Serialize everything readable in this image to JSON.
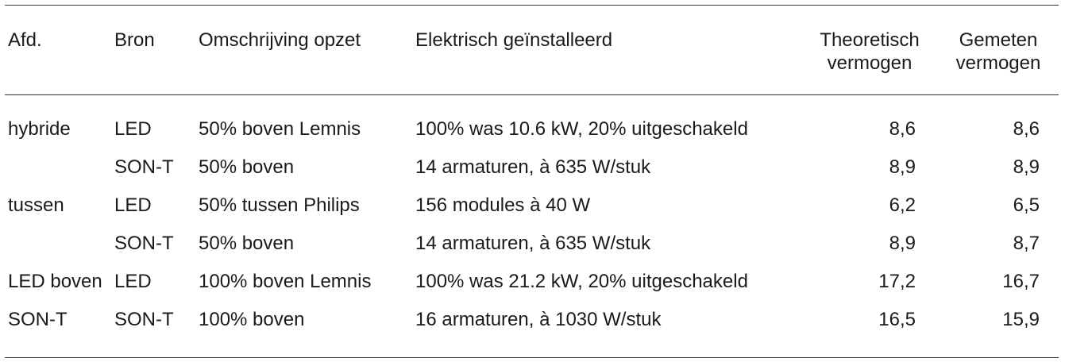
{
  "table": {
    "headers": [
      {
        "key": "afd",
        "label": "Afd."
      },
      {
        "key": "bron",
        "label": "Bron"
      },
      {
        "key": "omschrijving",
        "label": "Omschrijving opzet"
      },
      {
        "key": "elektrisch",
        "label": "Elektrisch geïnstalleerd"
      },
      {
        "key": "theoretisch",
        "label_line1": "Theoretisch",
        "label_line2": "vermogen"
      },
      {
        "key": "gemeten",
        "label_line1": "Gemeten",
        "label_line2": "vermogen"
      }
    ],
    "rows": [
      {
        "afd": "hybride",
        "bron": "LED",
        "omschrijving": "50% boven Lemnis",
        "elektrisch": "100% was 10.6 kW, 20% uitgeschakeld",
        "theoretisch": "8,6",
        "gemeten": "8,6"
      },
      {
        "afd": "",
        "bron": "SON-T",
        "omschrijving": "50% boven",
        "elektrisch": "14 armaturen, à 635 W/stuk",
        "theoretisch": "8,9",
        "gemeten": "8,9"
      },
      {
        "afd": "tussen",
        "bron": "LED",
        "omschrijving": "50% tussen Philips",
        "elektrisch": "156 modules à 40 W",
        "theoretisch": "6,2",
        "gemeten": "6,5"
      },
      {
        "afd": "",
        "bron": "SON-T",
        "omschrijving": "50% boven",
        "elektrisch": "14 armaturen, à 635 W/stuk",
        "theoretisch": "8,9",
        "gemeten": "8,7"
      },
      {
        "afd": "LED boven",
        "bron": "LED",
        "omschrijving": "100% boven Lemnis",
        "elektrisch": "100% was 21.2 kW, 20% uitgeschakeld",
        "theoretisch": "17,2",
        "gemeten": "16,7"
      },
      {
        "afd": "SON-T",
        "bron": "SON-T",
        "omschrijving": "100% boven",
        "elektrisch": "16 armaturen, à 1030 W/stuk",
        "theoretisch": "16,5",
        "gemeten": "15,9"
      }
    ]
  }
}
